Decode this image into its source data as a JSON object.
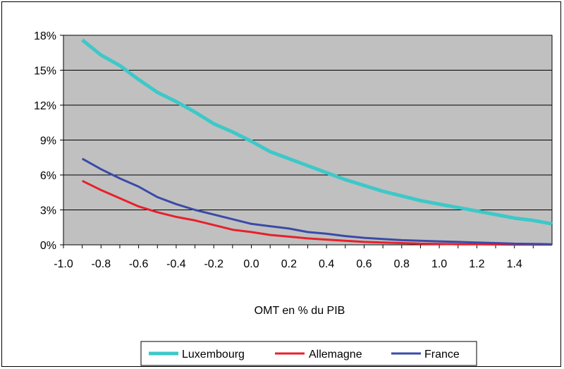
{
  "chart_data": {
    "type": "line",
    "title": "",
    "xlabel": "OMT en % du PIB",
    "ylabel": "",
    "xlim": [
      -1.0,
      1.6
    ],
    "ylim": [
      0,
      18
    ],
    "x_ticks": [
      -1.0,
      -0.8,
      -0.6,
      -0.4,
      -0.2,
      0.0,
      0.2,
      0.4,
      0.6,
      0.8,
      1.0,
      1.2,
      1.4
    ],
    "x_tick_labels": [
      "-1.0",
      "-0.8",
      "-0.6",
      "-0.4",
      "-0.2",
      "0.0",
      "0.2",
      "0.4",
      "0.6",
      "0.8",
      "1.0",
      "1.2",
      "1.4"
    ],
    "y_ticks": [
      0,
      3,
      6,
      9,
      12,
      15,
      18
    ],
    "y_tick_labels": [
      "0%",
      "3%",
      "6%",
      "9%",
      "12%",
      "15%",
      "18%"
    ],
    "grid": true,
    "legend_position": "bottom",
    "plot_background": "#c0c0c0",
    "x": [
      -0.9,
      -0.8,
      -0.7,
      -0.6,
      -0.5,
      -0.4,
      -0.3,
      -0.2,
      -0.1,
      0.0,
      0.1,
      0.2,
      0.3,
      0.4,
      0.5,
      0.6,
      0.7,
      0.8,
      0.9,
      1.0,
      1.1,
      1.2,
      1.3,
      1.4,
      1.5,
      1.6
    ],
    "series": [
      {
        "name": "Luxembourg",
        "color": "#3ec8c8",
        "values": [
          17.6,
          16.3,
          15.4,
          14.2,
          13.1,
          12.3,
          11.4,
          10.4,
          9.7,
          8.9,
          8.0,
          7.4,
          6.8,
          6.2,
          5.6,
          5.1,
          4.6,
          4.2,
          3.8,
          3.5,
          3.2,
          2.9,
          2.6,
          2.3,
          2.1,
          1.8
        ]
      },
      {
        "name": "Allemagne",
        "color": "#e8202a",
        "values": [
          5.5,
          4.7,
          4.0,
          3.3,
          2.8,
          2.4,
          2.1,
          1.7,
          1.3,
          1.1,
          0.85,
          0.7,
          0.55,
          0.45,
          0.35,
          0.25,
          0.2,
          0.15,
          0.1,
          0.08,
          0.05,
          0.04,
          0.03,
          0.02,
          0.02,
          0.01
        ]
      },
      {
        "name": "France",
        "color": "#3a4aa8",
        "values": [
          7.4,
          6.5,
          5.7,
          5.0,
          4.1,
          3.5,
          3.0,
          2.6,
          2.2,
          1.8,
          1.6,
          1.4,
          1.1,
          0.95,
          0.75,
          0.6,
          0.5,
          0.4,
          0.35,
          0.3,
          0.25,
          0.2,
          0.15,
          0.1,
          0.08,
          0.05
        ]
      }
    ]
  }
}
